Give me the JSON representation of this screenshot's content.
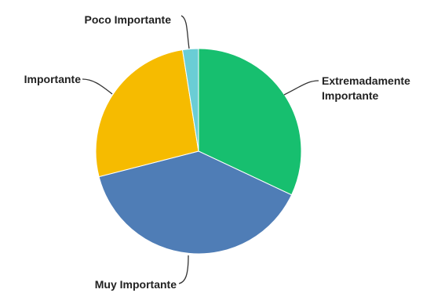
{
  "chart_data": {
    "type": "pie",
    "title": "",
    "start_angle_deg": 0,
    "direction": "clockwise",
    "slices": [
      {
        "label_lines": [
          "Extremadamente",
          "Importante"
        ],
        "value": 32,
        "color": "#17bf6f"
      },
      {
        "label_lines": [
          "Muy Importante"
        ],
        "value": 39,
        "color": "#4f7db6"
      },
      {
        "label_lines": [
          "Importante"
        ],
        "value": 26.5,
        "color": "#f6bb00"
      },
      {
        "label_lines": [
          "Poco Importante"
        ],
        "value": 2.5,
        "color": "#6acdd5"
      }
    ]
  }
}
